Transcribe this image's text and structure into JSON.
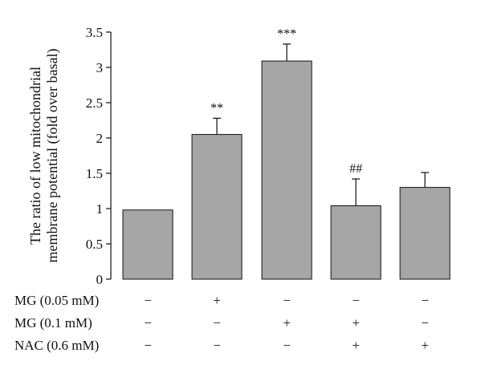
{
  "chart_data": {
    "type": "bar",
    "ylabel": "The ratio of low mitochondrial membrane potential (fold over basal)",
    "ylabel_lines": [
      "The ratio of low mitochondrial",
      "membrane potential (fold over basal)"
    ],
    "ylim": [
      0,
      3.5
    ],
    "yticks": [
      "0",
      "0.5",
      "1",
      "1.5",
      "2",
      "2.5",
      "3",
      "3.5"
    ],
    "bar_color": "#a6a6a6",
    "bar_outline_color": "#111111",
    "values": [
      0.98,
      2.05,
      3.09,
      1.04,
      1.3
    ],
    "errors": [
      0,
      0.23,
      0.24,
      0.38,
      0.21
    ],
    "annotations": [
      "",
      "**",
      "***",
      "##",
      ""
    ],
    "conditions": [
      {
        "label": "MG (0.05 mM)",
        "signs": [
          "−",
          "+",
          "−",
          "−",
          "−"
        ]
      },
      {
        "label": "MG (0.1 mM)",
        "signs": [
          "−",
          "−",
          "+",
          "+",
          "−"
        ]
      },
      {
        "label": "NAC (0.6 mM)",
        "signs": [
          "−",
          "−",
          "−",
          "+",
          "+"
        ]
      }
    ]
  }
}
